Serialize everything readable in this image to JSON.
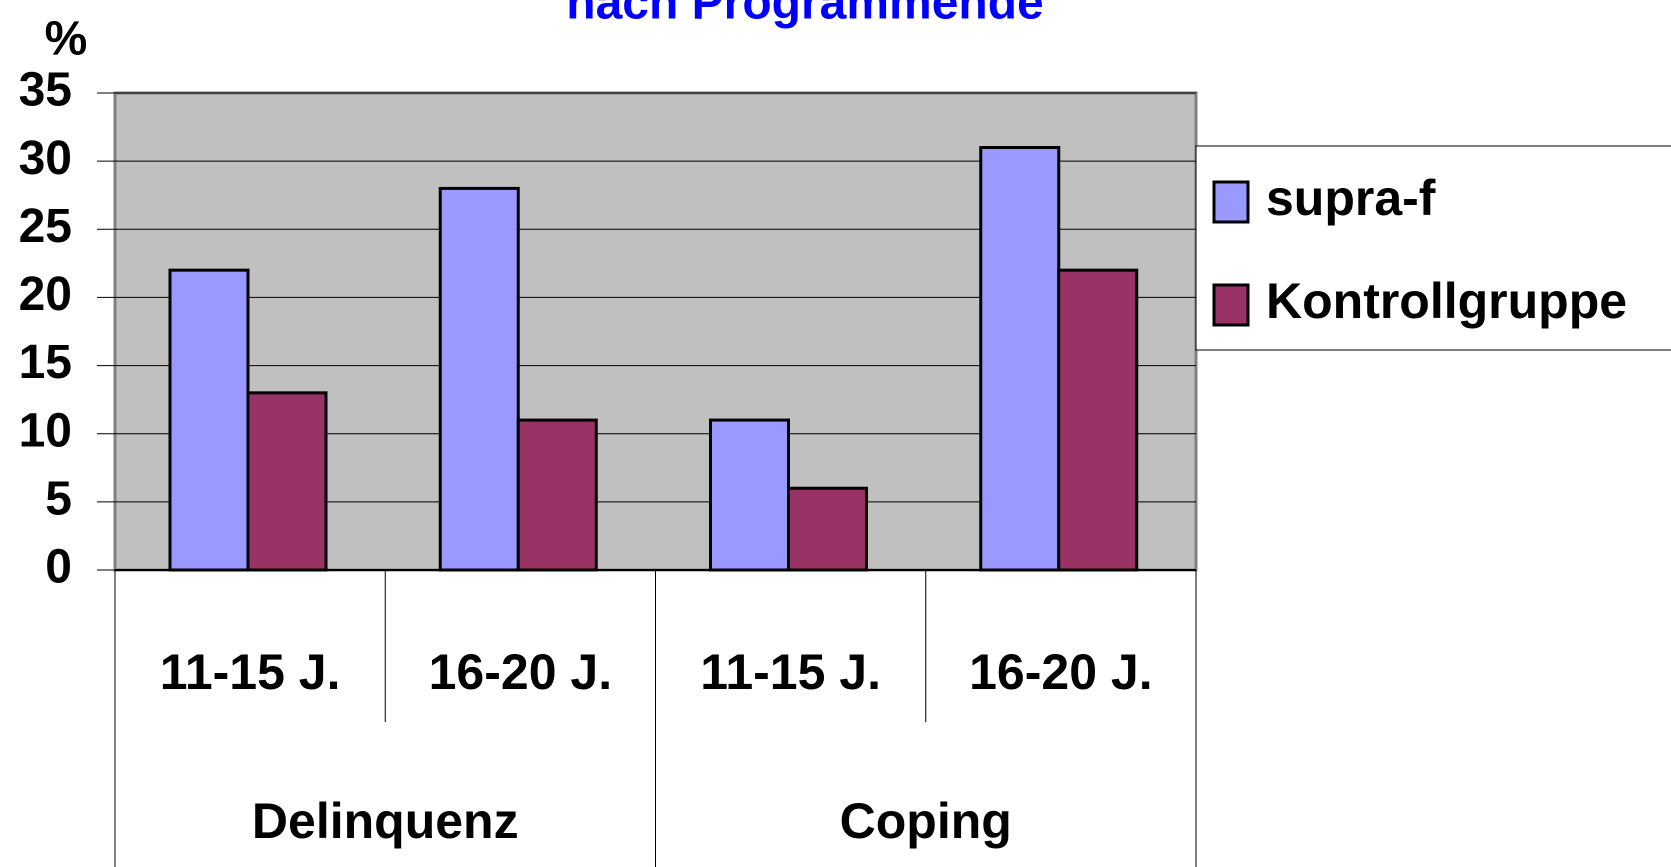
{
  "chart_data": {
    "type": "bar",
    "title": "nach Programmende",
    "y_label": "%",
    "categories": [
      "11-15 J.",
      "16-20 J.",
      "11-15 J.",
      "16-20 J."
    ],
    "groups": [
      "Delinquenz",
      "Coping"
    ],
    "series": [
      {
        "name": "supra-f",
        "color": "#9999ff",
        "values": [
          22,
          28,
          11,
          31
        ]
      },
      {
        "name": "Kontrollgruppe",
        "color": "#993366",
        "values": [
          13,
          11,
          6,
          22
        ]
      }
    ],
    "ylim": [
      0,
      35
    ],
    "yticks": [
      0,
      5,
      10,
      15,
      20,
      25,
      30,
      35
    ],
    "grid": true,
    "legend": "right"
  }
}
